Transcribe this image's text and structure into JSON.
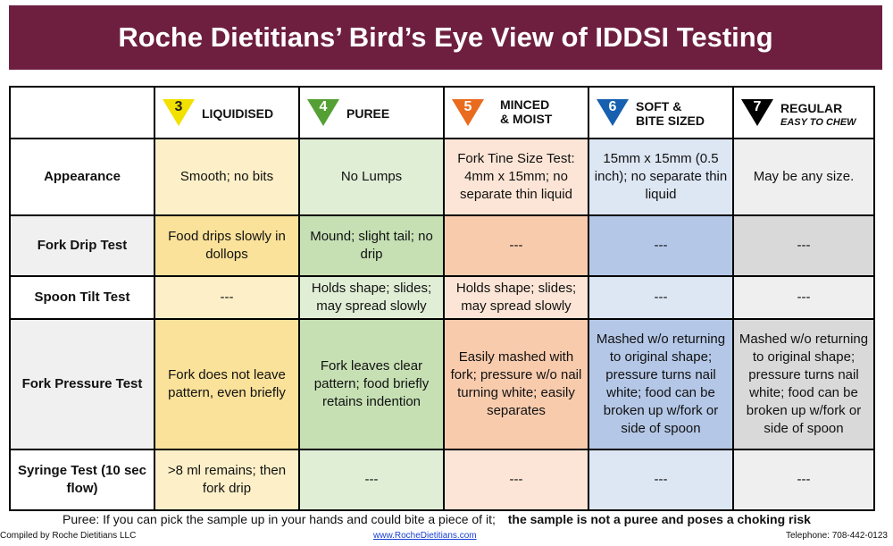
{
  "title": "Roche Dietitians’ Bird’s Eye View of IDDSI Testing",
  "levels": [
    {
      "number": "3",
      "name": "LIQUIDISED",
      "name2": "",
      "sub": "",
      "color": "#f2e000",
      "numcolor": "#222"
    },
    {
      "number": "4",
      "name": "PUREE",
      "name2": "",
      "sub": "",
      "color": "#55a035",
      "numcolor": "#fff"
    },
    {
      "number": "5",
      "name": "MINCED",
      "name2": "& MOIST",
      "sub": "",
      "color": "#e96b1e",
      "numcolor": "#fff"
    },
    {
      "number": "6",
      "name": "SOFT &",
      "name2": "BITE SIZED",
      "sub": "",
      "color": "#1760b0",
      "numcolor": "#fff"
    },
    {
      "number": "7",
      "name": "REGULAR",
      "name2": "",
      "sub": "EASY TO CHEW",
      "color": "#000000",
      "numcolor": "#fff"
    }
  ],
  "rows": [
    {
      "label": "Appearance",
      "cells": [
        "Smooth; no bits",
        "No Lumps",
        "Fork Tine Size Test: 4mm x 15mm; no separate thin liquid",
        "15mm x 15mm (0.5 inch); no separate thin liquid",
        "May be any size."
      ]
    },
    {
      "label": "Fork Drip Test",
      "cells": [
        "Food drips slowly in dollops",
        "Mound; slight tail; no drip",
        "---",
        "---",
        "---"
      ]
    },
    {
      "label": "Spoon Tilt Test",
      "cells": [
        "---",
        "Holds shape; slides; may spread slowly",
        "Holds shape; slides; may spread slowly",
        "---",
        "---"
      ]
    },
    {
      "label": "Fork Pressure Test",
      "cells": [
        "Fork does not leave pattern, even briefly",
        "Fork leaves clear pattern; food briefly retains indention",
        "Easily mashed with fork; pressure w/o nail turning white; easily separates",
        "Mashed w/o returning to original shape; pressure turns nail white; food can be broken up w/fork or side of spoon",
        "Mashed w/o returning to original shape; pressure turns nail white; food can be broken up w/fork or side of spoon"
      ]
    },
    {
      "label": "Syringe Test (10 sec flow)",
      "cells": [
        ">8 ml remains; then fork drip",
        "---",
        "---",
        "---",
        "---"
      ]
    }
  ],
  "footnote": {
    "text": "Puree:  If you can pick the sample up in your hands and could bite a piece of it;",
    "bold": "the sample is not a puree and poses a choking risk"
  },
  "footer": {
    "left": "Compiled by Roche Dietitians  LLC",
    "center": "www.RocheDietitians.com",
    "right": "Telephone: 708-442-0123"
  }
}
